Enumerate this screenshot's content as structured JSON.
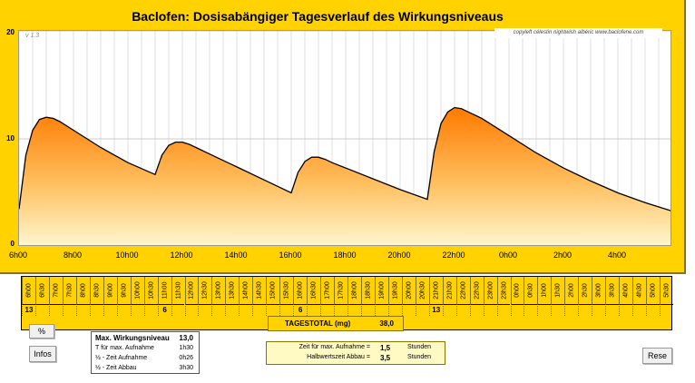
{
  "title": "Baclofen: Dosisabängiger Tagesverlauf des Wirkungsniveaus",
  "version": "v 1.3",
  "copyleft": "copyleft  célestin  nightwish  albéric  www.baclofene.com",
  "chart_data": {
    "type": "area",
    "ylim": [
      0,
      20
    ],
    "yticks": [
      "0",
      "10",
      "20"
    ],
    "x_axis_labels": [
      "6h00",
      "8h00",
      "10h00",
      "12h00",
      "14h00",
      "16h00",
      "18h00",
      "20h00",
      "22h00",
      "0h00",
      "2h00",
      "4h00"
    ],
    "x_hours_from_6h00": [
      0,
      2,
      4,
      6,
      8,
      10,
      12,
      14,
      16,
      18,
      20,
      22
    ],
    "grid": true,
    "curve_hours_from_6h00": [
      0,
      0.25,
      0.5,
      0.75,
      1.0,
      1.25,
      1.5,
      2,
      3,
      4,
      5,
      5.25,
      5.5,
      5.75,
      6.0,
      6.25,
      6.5,
      7,
      8,
      9,
      10,
      10.25,
      10.5,
      10.75,
      11,
      11.25,
      11.5,
      12,
      13,
      14,
      15,
      15.25,
      15.5,
      15.75,
      16,
      16.25,
      16.5,
      17,
      18,
      19,
      20,
      21,
      22,
      23,
      24
    ],
    "curve_values": [
      3.5,
      8.5,
      10.8,
      11.8,
      12.0,
      11.9,
      11.6,
      10.8,
      9.2,
      7.8,
      6.7,
      8.5,
      9.4,
      9.7,
      9.7,
      9.5,
      9.2,
      8.6,
      7.4,
      6.2,
      5.0,
      6.9,
      7.9,
      8.3,
      8.3,
      8.1,
      7.8,
      7.3,
      6.3,
      5.3,
      4.4,
      8.8,
      11.4,
      12.5,
      12.9,
      12.8,
      12.5,
      11.9,
      10.3,
      8.7,
      7.3,
      6.1,
      5.0,
      4.1,
      3.3
    ]
  },
  "schedule": {
    "half_hours": [
      "6h00",
      "6h30",
      "7h00",
      "7h30",
      "8h00",
      "8h30",
      "9h00",
      "9h30",
      "10h00",
      "10h30",
      "11h00",
      "11h30",
      "12h00",
      "12h30",
      "13h00",
      "13h30",
      "14h00",
      "14h30",
      "15h00",
      "15h30",
      "16h00",
      "16h30",
      "17h00",
      "17h30",
      "18h00",
      "18h30",
      "19h00",
      "19h30",
      "20h00",
      "20h30",
      "21h00",
      "21h30",
      "22h00",
      "22h30",
      "23h00",
      "23h30",
      "0h00",
      "0h30",
      "1h00",
      "1h30",
      "2h00",
      "2h30",
      "3h00",
      "3h30",
      "4h00",
      "4h30",
      "5h00",
      "5h30"
    ],
    "doses": {
      "0": "13",
      "10": "6",
      "20": "6",
      "30": "13"
    }
  },
  "total": {
    "label": "TAGESTOTAL (mg)",
    "value": "38,0"
  },
  "buttons": {
    "percent": "%",
    "infos": "Infos",
    "reset": "Rese"
  },
  "max_box": {
    "title": "Max. Wirkungsniveau",
    "title_value": "13,0",
    "rows": [
      {
        "label": "T für max. Aufnahme",
        "value": "1h30"
      },
      {
        "label": "½ - Zeit Aufnahme",
        "value": "0h26"
      },
      {
        "label": "½ - Zeit Abbau",
        "value": "3h30"
      }
    ]
  },
  "params": {
    "row1": {
      "label": "Zeit für max. Aufnahme  =",
      "value": "1,5",
      "unit": "Stunden"
    },
    "row2": {
      "label": "Halbwertszeit Abbau  =",
      "value": "3,5",
      "unit": "Stunden"
    }
  }
}
